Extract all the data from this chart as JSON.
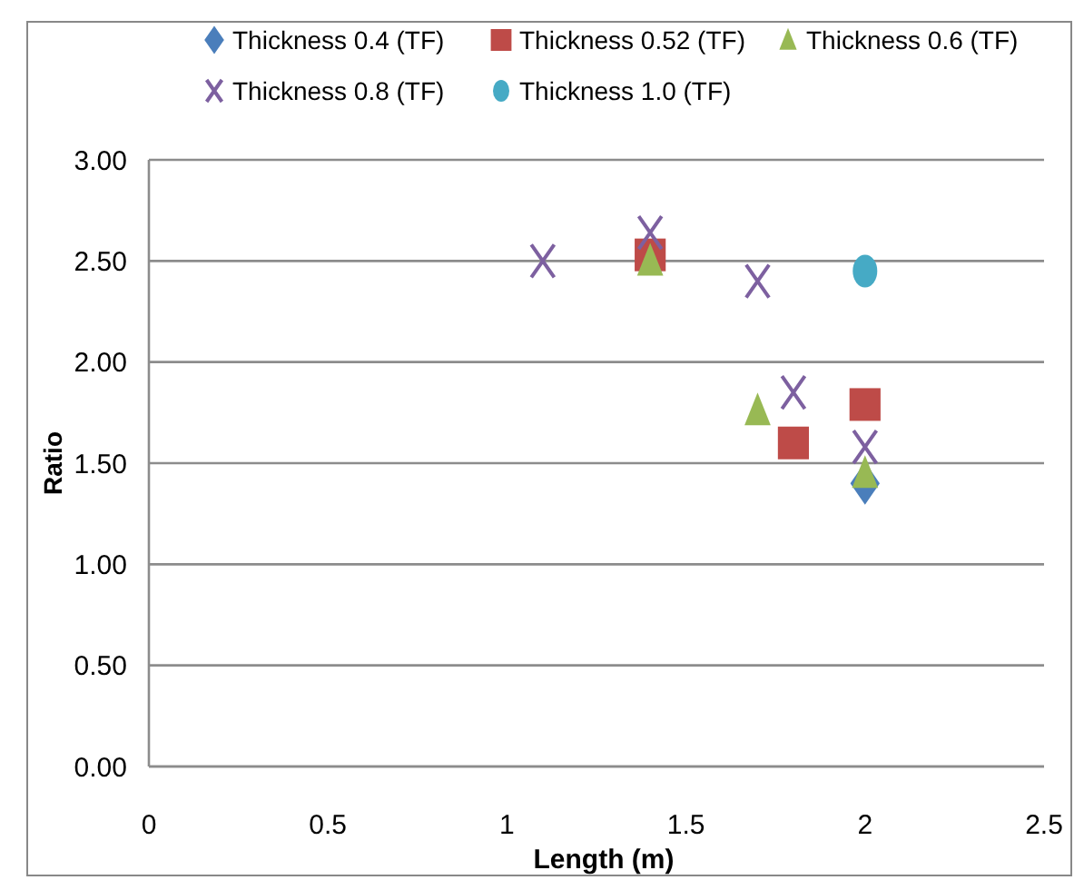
{
  "chart_data": {
    "type": "scatter",
    "xlabel": "Length (m)",
    "ylabel": "Ratio",
    "xlim": [
      0,
      2.5
    ],
    "xticks": [
      0,
      0.5,
      1,
      1.5,
      2,
      2.5
    ],
    "ylim": [
      0,
      3
    ],
    "yticks": [
      {
        "value": 0,
        "label": "0.00"
      },
      {
        "value": 0.5,
        "label": "0.50"
      },
      {
        "value": 1,
        "label": "1.00"
      },
      {
        "value": 1.5,
        "label": "1.50"
      },
      {
        "value": 2,
        "label": "2.00"
      },
      {
        "value": 2.5,
        "label": "2.50"
      },
      {
        "value": 3,
        "label": "3.00"
      }
    ],
    "grid": "y",
    "legend": "top",
    "series": [
      {
        "name": "Thickness 0.4 (TF)",
        "color": "#4a7ebb",
        "marker": "diamond",
        "x": [
          2.0
        ],
        "values": [
          1.4
        ]
      },
      {
        "name": "Thickness 0.52 (TF)",
        "color": "#be4b48",
        "marker": "square",
        "x": [
          1.4,
          1.8,
          2.0
        ],
        "values": [
          2.53,
          1.6,
          1.79
        ]
      },
      {
        "name": "Thickness 0.6 (TF)",
        "color": "#98b954",
        "marker": "triangle",
        "x": [
          1.4,
          1.7,
          2.0
        ],
        "values": [
          2.5,
          1.76,
          1.45
        ]
      },
      {
        "name": "Thickness 0.8 (TF)",
        "color": "#7d60a0",
        "marker": "cross",
        "x": [
          1.1,
          1.4,
          1.7,
          1.8,
          2.0
        ],
        "values": [
          2.5,
          2.64,
          2.4,
          1.85,
          1.58
        ]
      },
      {
        "name": "Thickness 1.0 (TF)",
        "color": "#46aac5",
        "marker": "circle",
        "x": [
          2.0
        ],
        "values": [
          2.45
        ]
      }
    ]
  }
}
